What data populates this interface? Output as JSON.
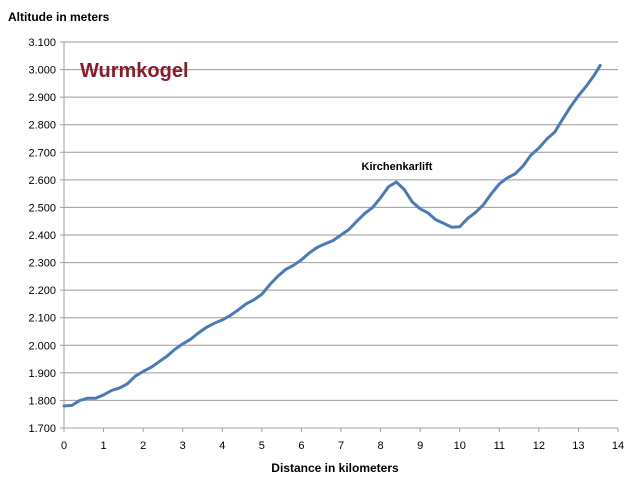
{
  "chart_data": {
    "type": "line",
    "title": "Wurmkogel",
    "ylabel": "Altitude in meters",
    "xlabel": "Distance in kilometers",
    "annotation": "Kirchenkarlift",
    "xlim": [
      0,
      14
    ],
    "ylim": [
      1700,
      3100
    ],
    "x_ticks": [
      0,
      1,
      2,
      3,
      4,
      5,
      6,
      7,
      8,
      9,
      10,
      11,
      12,
      13,
      14
    ],
    "x_tick_labels": [
      "0",
      "1",
      "2",
      "3",
      "4",
      "5",
      "6",
      "7",
      "8",
      "9",
      "10",
      "11",
      "12",
      "13",
      "14"
    ],
    "y_ticks": [
      1700,
      1800,
      1900,
      2000,
      2100,
      2200,
      2300,
      2400,
      2500,
      2600,
      2700,
      2800,
      2900,
      3000,
      3100
    ],
    "y_tick_labels": [
      "1.700",
      "1.800",
      "1.900",
      "2.000",
      "2.100",
      "2.200",
      "2.300",
      "2.400",
      "2.500",
      "2.600",
      "2.700",
      "2.800",
      "2.900",
      "3.000",
      "3.100"
    ],
    "grid": "horizontal",
    "colors": {
      "line": "#4a7ab8",
      "grid": "#9a9a9a",
      "title": "#8b1a2a",
      "axis": "#a0a0a0"
    },
    "series": [
      {
        "x": [
          0,
          0.2,
          0.4,
          0.6,
          0.8,
          1.0,
          1.2,
          1.4,
          1.6,
          1.8,
          2.0,
          2.2,
          2.4,
          2.6,
          2.8,
          3.0,
          3.2,
          3.4,
          3.6,
          3.8,
          4.0,
          4.2,
          4.4,
          4.6,
          4.8,
          5.0,
          5.2,
          5.4,
          5.6,
          5.8,
          6.0,
          6.2,
          6.4,
          6.6,
          6.8,
          7.0,
          7.2,
          7.4,
          7.6,
          7.8,
          8.0,
          8.2,
          8.4,
          8.6,
          8.8,
          9.0,
          9.2,
          9.4,
          9.6,
          9.8,
          10.0,
          10.2,
          10.4,
          10.6,
          10.8,
          11.0,
          11.2,
          11.4,
          11.6,
          11.8,
          12.0,
          12.2,
          12.4,
          12.6,
          12.8,
          13.0,
          13.2,
          13.4,
          13.55
        ],
        "values": [
          1780,
          1782,
          1800,
          1808,
          1808,
          1820,
          1836,
          1845,
          1860,
          1888,
          1905,
          1920,
          1940,
          1960,
          1985,
          2005,
          2022,
          2045,
          2065,
          2080,
          2092,
          2108,
          2128,
          2150,
          2165,
          2185,
          2220,
          2250,
          2275,
          2290,
          2310,
          2335,
          2355,
          2368,
          2380,
          2400,
          2420,
          2450,
          2478,
          2500,
          2535,
          2575,
          2592,
          2565,
          2520,
          2495,
          2480,
          2455,
          2442,
          2428,
          2430,
          2460,
          2482,
          2510,
          2550,
          2585,
          2607,
          2622,
          2650,
          2690,
          2715,
          2748,
          2773,
          2820,
          2865,
          2905,
          2940,
          2980,
          3015
        ]
      }
    ]
  }
}
